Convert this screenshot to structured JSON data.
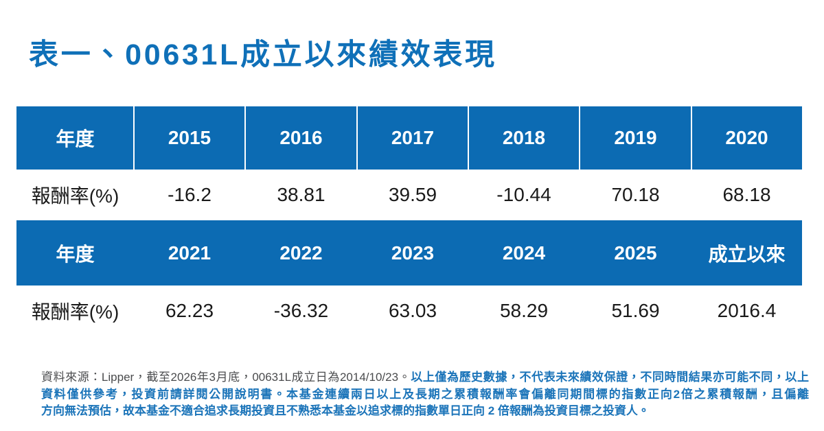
{
  "title": {
    "text": "表一、00631L成立以來績效表現",
    "color": "#0F70B8"
  },
  "table": {
    "header_bg": "#0C6BB3",
    "header_text_color": "#ffffff",
    "body_text_color": "#1a1a1a",
    "year_label": "年度",
    "return_label": "報酬率(%)",
    "sections": [
      {
        "years": [
          "2015",
          "2016",
          "2017",
          "2018",
          "2019",
          "2020"
        ],
        "returns": [
          "-16.2",
          "38.81",
          "39.59",
          "-10.44",
          "70.18",
          "68.18"
        ]
      },
      {
        "years": [
          "2021",
          "2022",
          "2023",
          "2024",
          "2025",
          "成立以來"
        ],
        "returns": [
          "62.23",
          "-36.32",
          "63.03",
          "58.29",
          "51.69",
          "2016.4"
        ]
      }
    ]
  },
  "chart_data": {
    "type": "table",
    "title": "表一、00631L成立以來績效表現",
    "rows": [
      {
        "label": "年度",
        "values": [
          "2015",
          "2016",
          "2017",
          "2018",
          "2019",
          "2020"
        ]
      },
      {
        "label": "報酬率(%)",
        "values": [
          -16.2,
          38.81,
          39.59,
          -10.44,
          70.18,
          68.18
        ]
      },
      {
        "label": "年度",
        "values": [
          "2021",
          "2022",
          "2023",
          "2024",
          "2025",
          "成立以來"
        ]
      },
      {
        "label": "報酬率(%)",
        "values": [
          62.23,
          -36.32,
          63.03,
          58.29,
          51.69,
          2016.4
        ]
      }
    ]
  },
  "footnote": {
    "source_line": "資料來源：Lipper，截至2026年3月底，00631L成立日為2014/10/23。",
    "disclaimer_line1": "以上僅為歷史數據，不代表未來績效保證，不同時間結果亦可能不同，以上",
    "disclaimer_line2": "資料僅供參考，投資前請詳閱公開說明書。本基金連續兩日以上及長期之累積報酬率會偏離同期間標的指數正向2倍之累積報酬，且偏離",
    "disclaimer_line3": "方向無法預估，故本基金不適合追求長期投資且不熟悉本基金以追求標的指數單日正向 2 倍報酬為投資目標之投資人。",
    "source_color": "#4A4B4D",
    "disclaimer_color": "#1B74B9"
  }
}
